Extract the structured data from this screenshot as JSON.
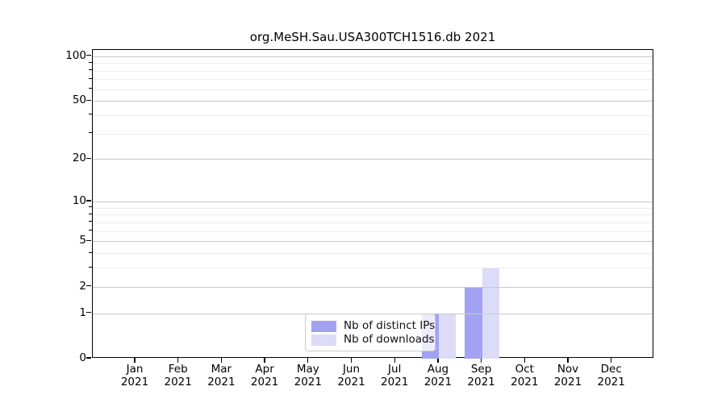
{
  "chart_data": {
    "type": "bar",
    "title": "org.MeSH.Sau.USA300TCH1516.db 2021",
    "x_months": [
      "Jan",
      "Feb",
      "Mar",
      "Apr",
      "May",
      "Jun",
      "Jul",
      "Aug",
      "Sep",
      "Oct",
      "Nov",
      "Dec"
    ],
    "x_year": "2021",
    "series": [
      {
        "name": "Nb of distinct IPs",
        "color": "#a2a2f2",
        "values": [
          0,
          0,
          0,
          0,
          0,
          0,
          0,
          1,
          2,
          0,
          0,
          0
        ]
      },
      {
        "name": "Nb of downloads",
        "color": "#dcdcf8",
        "values": [
          0,
          0,
          0,
          0,
          0,
          0,
          0,
          1,
          3,
          0,
          0,
          0
        ]
      }
    ],
    "y_scale": "log10(value+1)",
    "y_major_ticks": [
      100,
      50,
      20,
      10,
      5,
      2,
      1,
      0
    ],
    "y_minor_gridlines": [
      90,
      80,
      70,
      60,
      40,
      30,
      9,
      8,
      7,
      6,
      4,
      3
    ],
    "ylim": [
      0,
      110
    ],
    "grid": "horizontal",
    "legend_position": "lower-center-inside"
  },
  "colors": {
    "background": "#ffffff",
    "axis_spine": "#000000",
    "grid_major": "#c9c9c9",
    "grid_minor": "#ececec",
    "legend_border": "#cccccc",
    "text": "#000000"
  }
}
